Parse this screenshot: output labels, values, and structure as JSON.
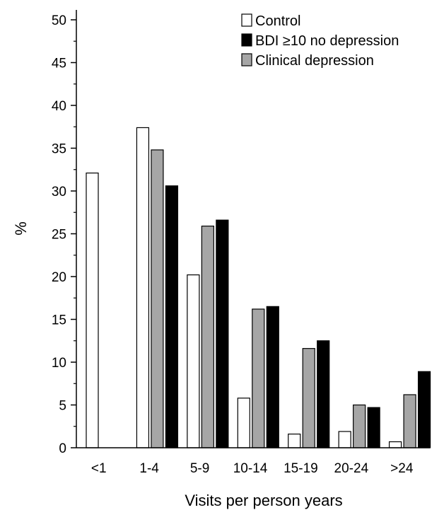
{
  "chart_data": {
    "type": "bar",
    "title": "",
    "xlabel": "Visits per person years",
    "ylabel": "%",
    "ylim": [
      0,
      50
    ],
    "yticks": [
      0,
      5,
      10,
      15,
      20,
      25,
      30,
      35,
      40,
      45,
      50
    ],
    "categories": [
      "<1",
      "1-4",
      "5-9",
      "10-14",
      "15-19",
      "20-24",
      ">24"
    ],
    "grid": false,
    "legend_position": "top-right",
    "series": [
      {
        "name": "Control",
        "color": "#ffffff",
        "values": [
          32.1,
          37.4,
          20.2,
          5.8,
          1.6,
          1.9,
          0.7
        ]
      },
      {
        "name": "Clinical depression",
        "color": "#a6a6a6",
        "values": [
          0,
          34.8,
          25.9,
          16.2,
          11.6,
          5.0,
          6.2
        ]
      },
      {
        "name": "BDI ≥10 no depression",
        "color": "#000000",
        "values": [
          0,
          30.6,
          26.6,
          16.5,
          12.5,
          4.7,
          8.9
        ]
      }
    ],
    "legend": [
      {
        "label": "Control",
        "color": "#ffffff"
      },
      {
        "label": "BDI ≥10 no depression",
        "color": "#000000"
      },
      {
        "label": "Clinical depression",
        "color": "#a6a6a6"
      }
    ]
  }
}
